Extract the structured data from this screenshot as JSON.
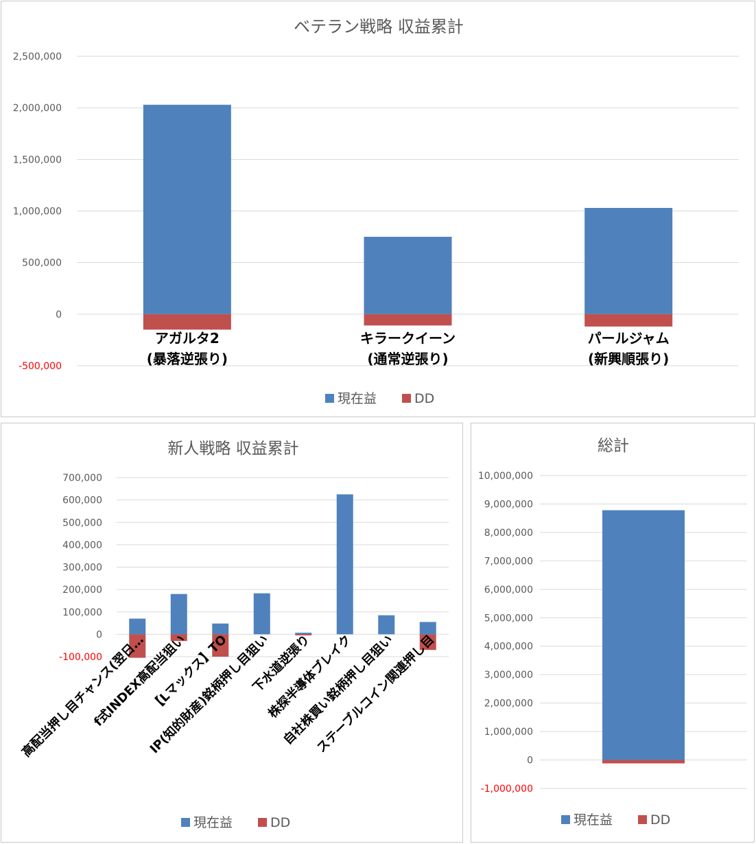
{
  "colors": {
    "current_profit": "#4f81bd",
    "drawdown": "#c0504d",
    "negative_tick": "#ff0000"
  },
  "chart_data": [
    {
      "type": "bar",
      "title": "ベテラン戦略 収益累計",
      "categories": [
        [
          "アガルタ2",
          "(暴落逆張り)"
        ],
        [
          "キラークイーン",
          "(通常逆張り)"
        ],
        [
          "パールジャム",
          "(新興順張り)"
        ]
      ],
      "series": [
        {
          "name": "現在益",
          "values": [
            2030000,
            750000,
            1030000
          ]
        },
        {
          "name": "DD",
          "values": [
            -150000,
            -110000,
            -120000
          ]
        }
      ],
      "ylim": [
        -500000,
        2500000
      ],
      "ytick_labels": [
        "-500,000",
        "0",
        "500,000",
        "1,000,000",
        "1,500,000",
        "2,000,000",
        "2,500,000"
      ],
      "ytick_values": [
        -500000,
        0,
        500000,
        1000000,
        1500000,
        2000000,
        2500000
      ],
      "legend": "bottom",
      "grid": true
    },
    {
      "type": "bar",
      "title": "新人戦略 収益累計",
      "categories": [
        "高配当押し目チャンス(翌日…",
        "f式INDEX高配当狙い",
        "【Lマックス】TO",
        "IP(知的財産)銘柄押し目狙い",
        "下水道逆張り",
        "株探半導体ブレイク",
        "自社株買い銘柄押し目狙い",
        "ステーブルコイン関連押し目"
      ],
      "series": [
        {
          "name": "現在益",
          "values": [
            70000,
            180000,
            48000,
            183000,
            7000,
            625000,
            85000,
            55000
          ]
        },
        {
          "name": "DD",
          "values": [
            -105000,
            -30000,
            -100000,
            0,
            -5000,
            0,
            0,
            -70000
          ]
        }
      ],
      "ylim": [
        -100000,
        700000
      ],
      "ytick_labels": [
        "-100,000",
        "0",
        "100,000",
        "200,000",
        "300,000",
        "400,000",
        "500,000",
        "600,000",
        "700,000"
      ],
      "ytick_values": [
        -100000,
        0,
        100000,
        200000,
        300000,
        400000,
        500000,
        600000,
        700000
      ],
      "legend": "bottom",
      "grid": true
    },
    {
      "type": "bar",
      "title": "総計",
      "categories": [
        ""
      ],
      "series": [
        {
          "name": "現在益",
          "values": [
            8780000
          ]
        },
        {
          "name": "DD",
          "values": [
            -120000
          ]
        }
      ],
      "ylim": [
        -1000000,
        10000000
      ],
      "ytick_labels": [
        "-1,000,000",
        "0",
        "1,000,000",
        "2,000,000",
        "3,000,000",
        "4,000,000",
        "5,000,000",
        "6,000,000",
        "7,000,000",
        "8,000,000",
        "9,000,000",
        "10,000,000"
      ],
      "ytick_values": [
        -1000000,
        0,
        1000000,
        2000000,
        3000000,
        4000000,
        5000000,
        6000000,
        7000000,
        8000000,
        9000000,
        10000000
      ],
      "legend": "bottom",
      "grid": true
    }
  ]
}
